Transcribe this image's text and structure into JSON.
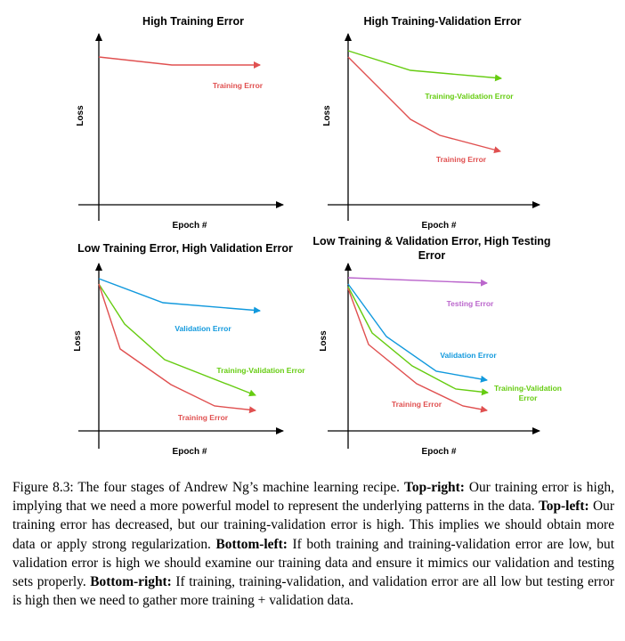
{
  "colors": {
    "training": "#e05050",
    "training_validation": "#66cc11",
    "validation": "#1199dd",
    "testing": "#bb66cc",
    "axis": "#000000"
  },
  "panels": [
    {
      "title_lines": [
        "High Training Error"
      ],
      "xlabel": "Epoch #",
      "ylabel": "Loss",
      "series": [
        {
          "name": "Training Error",
          "color_key": "training"
        }
      ]
    },
    {
      "title_lines": [
        "High Training-Validation Error"
      ],
      "xlabel": "Epoch #",
      "ylabel": "Loss",
      "series": [
        {
          "name": "Training-Validation Error",
          "color_key": "training_validation"
        },
        {
          "name": "Training Error",
          "color_key": "training"
        }
      ]
    },
    {
      "title_lines": [
        "Low Training Error, High Validation Error"
      ],
      "xlabel": "Epoch #",
      "ylabel": "Loss",
      "series": [
        {
          "name": "Validation Error",
          "color_key": "validation"
        },
        {
          "name": "Training-Validation Error",
          "color_key": "training_validation"
        },
        {
          "name": "Training Error",
          "color_key": "training"
        }
      ]
    },
    {
      "title_lines": [
        "Low Training & Validation Error, High Testing",
        "Error"
      ],
      "xlabel": "Epoch #",
      "ylabel": "Loss",
      "series": [
        {
          "name": "Testing Error",
          "color_key": "testing"
        },
        {
          "name": "Validation Error",
          "color_key": "validation"
        },
        {
          "name": "Training-Validation Error",
          "color_key": "training_validation",
          "label_lines": [
            "Training-Validation",
            "Error"
          ]
        },
        {
          "name": "Training Error",
          "color_key": "training"
        }
      ]
    }
  ],
  "caption": {
    "lead": "Figure 8.3: The four stages of Andrew Ng’s machine learning recipe.",
    "parts": [
      {
        "heading": "Top-right:",
        "text": "Our training error is high, implying that we need a more powerful model to represent the underlying patterns in the data."
      },
      {
        "heading": "Top-left:",
        "text": "Our training error has decreased, but our training-validation error is high. This implies we should obtain more data or apply strong regularization."
      },
      {
        "heading": "Bottom-left:",
        "text": "If both training and training-validation error are low, but validation error is high we should examine our training data and ensure it mimics our validation and testing sets properly."
      },
      {
        "heading": "Bottom-right:",
        "text": "If training, training-validation, and validation error are all low but testing error is high then we need to gather more training + validation data."
      }
    ]
  }
}
